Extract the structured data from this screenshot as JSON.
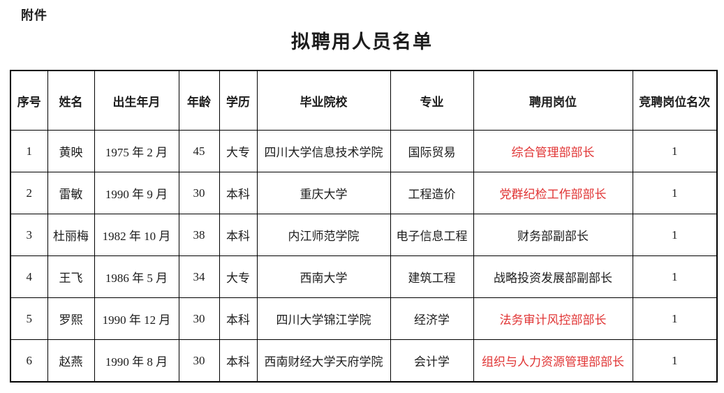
{
  "page": {
    "attachment_label": "附件",
    "title": "拟聘用人员名单"
  },
  "table": {
    "headers": [
      "序号",
      "姓名",
      "出生年月",
      "年龄",
      "学历",
      "毕业院校",
      "专业",
      "聘用岗位",
      "竞聘岗位名次"
    ],
    "rows": [
      {
        "no": "1",
        "name": "黄映",
        "birth": "1975 年 2 月",
        "age": "45",
        "education": "大专",
        "school": "四川大学信息技术学院",
        "major": "国际贸易",
        "position": "综合管理部部长",
        "position_highlight": true,
        "rank": "1"
      },
      {
        "no": "2",
        "name": "雷敏",
        "birth": "1990 年 9 月",
        "age": "30",
        "education": "本科",
        "school": "重庆大学",
        "major": "工程造价",
        "position": "党群纪检工作部部长",
        "position_highlight": true,
        "rank": "1"
      },
      {
        "no": "3",
        "name": "杜丽梅",
        "birth": "1982 年 10 月",
        "age": "38",
        "education": "本科",
        "school": "内江师范学院",
        "major": "电子信息工程",
        "position": "财务部副部长",
        "position_highlight": false,
        "rank": "1"
      },
      {
        "no": "4",
        "name": "王飞",
        "birth": "1986 年 5 月",
        "age": "34",
        "education": "大专",
        "school": "西南大学",
        "major": "建筑工程",
        "position": "战略投资发展部副部长",
        "position_highlight": false,
        "rank": "1"
      },
      {
        "no": "5",
        "name": "罗熙",
        "birth": "1990 年 12 月",
        "age": "30",
        "education": "本科",
        "school": "四川大学锦江学院",
        "major": "经济学",
        "position": "法务审计风控部部长",
        "position_highlight": true,
        "rank": "1"
      },
      {
        "no": "6",
        "name": "赵燕",
        "birth": "1990 年 8 月",
        "age": "30",
        "education": "本科",
        "school": "西南财经大学天府学院",
        "major": "会计学",
        "position": "组织与人力资源管理部部长",
        "position_highlight": true,
        "rank": "1"
      }
    ]
  },
  "colors": {
    "highlight_red": "#e03434",
    "text": "#1c1c1c",
    "border": "#000000",
    "background": "#ffffff"
  }
}
